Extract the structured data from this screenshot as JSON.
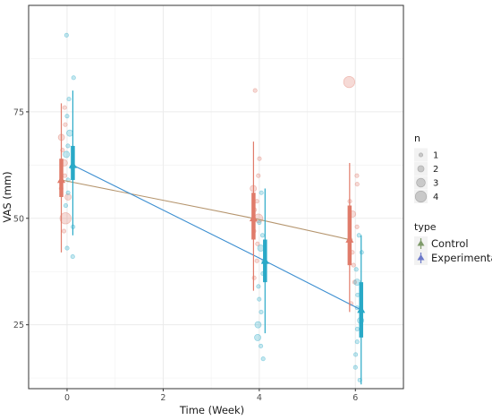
{
  "chart_data": {
    "type": "scatter",
    "xlabel": "Time (Week)",
    "ylabel": "VAS (mm)",
    "xlim": [
      -0.8,
      7.0
    ],
    "ylim": [
      10,
      100
    ],
    "x_ticks": [
      0,
      2,
      4,
      6
    ],
    "y_ticks": [
      25,
      50,
      75
    ],
    "grid": true,
    "legend_placement": "right",
    "colors": {
      "control": "#e07b6a",
      "experimental": "#29a9c7",
      "control_line": "#b5956e",
      "experimental_line": "#3d8fd1",
      "control_legend": "#7f9b6a",
      "experimental_legend": "#6b78c9",
      "panel_border": "#333333",
      "grid": "#ebebeb"
    },
    "size_legend": {
      "title": "n",
      "items": [
        {
          "label": "1",
          "n": 1
        },
        {
          "label": "2",
          "n": 2
        },
        {
          "label": "3",
          "n": 3
        },
        {
          "label": "4",
          "n": 4
        }
      ]
    },
    "type_legend": {
      "title": "type",
      "items": [
        {
          "label": "Control",
          "series": "control"
        },
        {
          "label": "Experimental",
          "series": "experimental"
        }
      ]
    },
    "series": [
      {
        "key": "control",
        "label": "Control",
        "x_offset": -0.12,
        "mean": [
          {
            "x": 0,
            "y": 59
          },
          {
            "x": 4,
            "y": 50
          },
          {
            "x": 6,
            "y": 45
          }
        ],
        "error_bar": [
          {
            "x": 0,
            "low": 42,
            "high": 77,
            "q1": 55,
            "q3": 64
          },
          {
            "x": 4,
            "low": 33,
            "high": 68,
            "q1": 45,
            "q3": 56
          },
          {
            "x": 6,
            "low": 28,
            "high": 63,
            "q1": 39,
            "q3": 53
          }
        ],
        "points": [
          {
            "x": 0,
            "y": 76,
            "n": 1
          },
          {
            "x": 0,
            "y": 72,
            "n": 1
          },
          {
            "x": 0,
            "y": 69,
            "n": 2
          },
          {
            "x": 0,
            "y": 66,
            "n": 1
          },
          {
            "x": 0,
            "y": 63,
            "n": 2
          },
          {
            "x": 0,
            "y": 60,
            "n": 1
          },
          {
            "x": 0,
            "y": 57,
            "n": 1
          },
          {
            "x": 0,
            "y": 55,
            "n": 2
          },
          {
            "x": 0,
            "y": 50,
            "n": 4
          },
          {
            "x": 0,
            "y": 47,
            "n": 1
          },
          {
            "x": 4,
            "y": 80,
            "n": 1
          },
          {
            "x": 4,
            "y": 64,
            "n": 1
          },
          {
            "x": 4,
            "y": 60,
            "n": 1
          },
          {
            "x": 4,
            "y": 57,
            "n": 2
          },
          {
            "x": 4,
            "y": 54,
            "n": 1
          },
          {
            "x": 4,
            "y": 52,
            "n": 1
          },
          {
            "x": 4,
            "y": 50,
            "n": 3
          },
          {
            "x": 4,
            "y": 47,
            "n": 1
          },
          {
            "x": 4,
            "y": 44,
            "n": 1
          },
          {
            "x": 4,
            "y": 40,
            "n": 1
          },
          {
            "x": 4,
            "y": 36,
            "n": 1
          },
          {
            "x": 6,
            "y": 82,
            "n": 4
          },
          {
            "x": 6,
            "y": 60,
            "n": 1
          },
          {
            "x": 6,
            "y": 58,
            "n": 1
          },
          {
            "x": 6,
            "y": 54,
            "n": 1
          },
          {
            "x": 6,
            "y": 51,
            "n": 2
          },
          {
            "x": 6,
            "y": 48,
            "n": 1
          },
          {
            "x": 6,
            "y": 45,
            "n": 1
          },
          {
            "x": 6,
            "y": 42,
            "n": 1
          },
          {
            "x": 6,
            "y": 39,
            "n": 1
          },
          {
            "x": 6,
            "y": 35,
            "n": 1
          },
          {
            "x": 6,
            "y": 30,
            "n": 1
          }
        ]
      },
      {
        "key": "experimental",
        "label": "Experimental",
        "x_offset": 0.12,
        "mean": [
          {
            "x": 0,
            "y": 62.5
          },
          {
            "x": 4,
            "y": 40
          },
          {
            "x": 6,
            "y": 28.5
          }
        ],
        "error_bar": [
          {
            "x": 0,
            "low": 46,
            "high": 80,
            "q1": 59,
            "q3": 67
          },
          {
            "x": 4,
            "low": 23,
            "high": 57,
            "q1": 35,
            "q3": 45
          },
          {
            "x": 6,
            "low": 11,
            "high": 46,
            "q1": 22,
            "q3": 35
          }
        ],
        "points": [
          {
            "x": 0,
            "y": 93,
            "n": 1
          },
          {
            "x": 0,
            "y": 83,
            "n": 1
          },
          {
            "x": 0,
            "y": 78,
            "n": 1
          },
          {
            "x": 0,
            "y": 74,
            "n": 1
          },
          {
            "x": 0,
            "y": 70,
            "n": 2
          },
          {
            "x": 0,
            "y": 67,
            "n": 1
          },
          {
            "x": 0,
            "y": 65,
            "n": 2
          },
          {
            "x": 0,
            "y": 62,
            "n": 1
          },
          {
            "x": 0,
            "y": 59,
            "n": 1
          },
          {
            "x": 0,
            "y": 56,
            "n": 1
          },
          {
            "x": 0,
            "y": 53,
            "n": 1
          },
          {
            "x": 0,
            "y": 48,
            "n": 1
          },
          {
            "x": 0,
            "y": 43,
            "n": 1
          },
          {
            "x": 0,
            "y": 41,
            "n": 1
          },
          {
            "x": 4,
            "y": 56,
            "n": 1
          },
          {
            "x": 4,
            "y": 49,
            "n": 1
          },
          {
            "x": 4,
            "y": 46,
            "n": 1
          },
          {
            "x": 4,
            "y": 43,
            "n": 2
          },
          {
            "x": 4,
            "y": 40,
            "n": 1
          },
          {
            "x": 4,
            "y": 37,
            "n": 1
          },
          {
            "x": 4,
            "y": 34,
            "n": 1
          },
          {
            "x": 4,
            "y": 31,
            "n": 1
          },
          {
            "x": 4,
            "y": 28,
            "n": 1
          },
          {
            "x": 4,
            "y": 25,
            "n": 2
          },
          {
            "x": 4,
            "y": 22,
            "n": 2
          },
          {
            "x": 4,
            "y": 20,
            "n": 1
          },
          {
            "x": 4,
            "y": 17,
            "n": 1
          },
          {
            "x": 6,
            "y": 46,
            "n": 1
          },
          {
            "x": 6,
            "y": 42,
            "n": 1
          },
          {
            "x": 6,
            "y": 38,
            "n": 1
          },
          {
            "x": 6,
            "y": 35,
            "n": 2
          },
          {
            "x": 6,
            "y": 32,
            "n": 1
          },
          {
            "x": 6,
            "y": 29,
            "n": 1
          },
          {
            "x": 6,
            "y": 26,
            "n": 2
          },
          {
            "x": 6,
            "y": 24,
            "n": 1
          },
          {
            "x": 6,
            "y": 21,
            "n": 1
          },
          {
            "x": 6,
            "y": 18,
            "n": 1
          },
          {
            "x": 6,
            "y": 15,
            "n": 1
          },
          {
            "x": 6,
            "y": 12,
            "n": 1
          }
        ]
      }
    ]
  }
}
